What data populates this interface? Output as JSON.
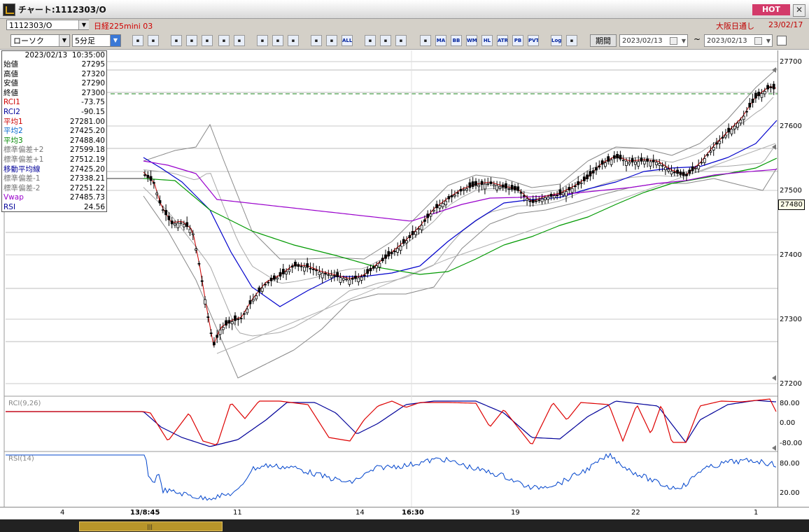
{
  "window": {
    "title": "チャート:1112303/O",
    "hot_label": "HOT",
    "close_label": "✕"
  },
  "symbol_bar": {
    "code": "1112303/O",
    "name": "日経225mini 03",
    "market": "大阪日通し",
    "date": "23/02/17"
  },
  "toolbar": {
    "chart_type": "ローソク",
    "interval": "5分足",
    "buttons": [
      "search-icon",
      "crosshair-icon",
      "draw-icon",
      "zoom-icon",
      "window-icon",
      "indicator-icon",
      "blank-icon",
      "pen-icon",
      "pointer-icon",
      "arrow-icon",
      "candle-icon",
      "tick-icon",
      "ALL",
      "gear-icon",
      "wrench-icon",
      "palette-icon",
      "grid-icon",
      "MA",
      "BB",
      "WMA",
      "HL",
      "ATR",
      "PB",
      "PVT",
      "Log",
      "export-icon"
    ],
    "period_label": "期間",
    "date_from": "2023/02/13",
    "date_to": "2023/02/13",
    "tilde": "~"
  },
  "info_panel": {
    "datetime": "2023/02/13  10:35:00",
    "rows": [
      {
        "label": "始値",
        "value": "27295",
        "color": "#000000"
      },
      {
        "label": "高値",
        "value": "27320",
        "color": "#000000"
      },
      {
        "label": "安値",
        "value": "27290",
        "color": "#000000"
      },
      {
        "label": "終値",
        "value": "27300",
        "color": "#000000"
      },
      {
        "label": "RCI1",
        "value": "-73.75",
        "color": "#cc0000"
      },
      {
        "label": "RCI2",
        "value": "-90.15",
        "color": "#000099"
      },
      {
        "label": "平均1",
        "value": "27281.00",
        "color": "#cc0000"
      },
      {
        "label": "平均2",
        "value": "27425.20",
        "color": "#0066cc"
      },
      {
        "label": "平均3",
        "value": "27488.40",
        "color": "#008800"
      },
      {
        "label": "標準偏差+2",
        "value": "27599.18",
        "color": "#777777"
      },
      {
        "label": "標準偏差+1",
        "value": "27512.19",
        "color": "#777777"
      },
      {
        "label": "移動平均線",
        "value": "27425.20",
        "color": "#000099"
      },
      {
        "label": "標準偏差-1",
        "value": "27338.21",
        "color": "#777777"
      },
      {
        "label": "標準偏差-2",
        "value": "27251.22",
        "color": "#777777"
      },
      {
        "label": "Vwap",
        "value": "27485.73",
        "color": "#9900cc"
      },
      {
        "label": "RSI",
        "value": "24.56",
        "color": "#000099"
      }
    ]
  },
  "price_axis": {
    "labels": [
      "27700",
      "27600",
      "27500",
      "27400",
      "27300",
      "27200"
    ],
    "current_price": "27480"
  },
  "rci_panel": {
    "label": "RCI(9,26)",
    "labels": [
      "80.00",
      "0.00",
      "-80.00"
    ]
  },
  "rsi_panel": {
    "label": "RSI(14)",
    "labels": [
      "80.00",
      "20.00"
    ]
  },
  "x_axis": {
    "labels": [
      "4",
      "13/8:45",
      "11",
      "14",
      "16:30",
      "19",
      "22",
      "1"
    ]
  },
  "colors": {
    "rci_fast": "#dd0000",
    "rci_slow": "#000099",
    "ma1": "#cc0000",
    "ma2": "#0000cc",
    "ma3": "#009900",
    "vwap": "#9900cc",
    "band": "#888888",
    "rsi": "#0044cc",
    "dashed": "#228822"
  }
}
